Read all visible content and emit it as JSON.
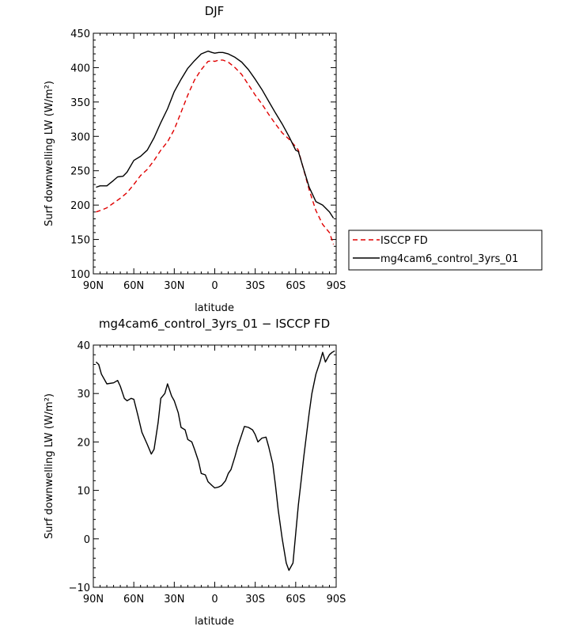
{
  "legend": {
    "position": "right-of-top-panel",
    "entries": [
      {
        "label": "ISCCP FD",
        "color": "#e00000",
        "dash": true
      },
      {
        "label": "mg4cam6_control_3yrs_01",
        "color": "#000000",
        "dash": false
      }
    ]
  },
  "chart_data": [
    {
      "type": "line",
      "title": "DJF",
      "xlabel": "latitude",
      "ylabel": "Surf downwelling LW (W/m²)",
      "xlim": [
        -90,
        90
      ],
      "ylim": [
        100,
        450
      ],
      "xticks": [
        {
          "v": -90,
          "label": "90N"
        },
        {
          "v": -60,
          "label": "60N"
        },
        {
          "v": -30,
          "label": "30N"
        },
        {
          "v": 0,
          "label": "0"
        },
        {
          "v": 30,
          "label": "30S"
        },
        {
          "v": 60,
          "label": "60S"
        },
        {
          "v": 90,
          "label": "90S"
        }
      ],
      "yticks": [
        100,
        150,
        200,
        250,
        300,
        350,
        400,
        450
      ],
      "grid": false,
      "series": [
        {
          "name": "ISCCP FD",
          "color": "#e00000",
          "dash": true,
          "x": [
            -88,
            -85,
            -80,
            -75,
            -70,
            -65,
            -60,
            -55,
            -50,
            -45,
            -40,
            -35,
            -30,
            -25,
            -20,
            -15,
            -10,
            -5,
            -2,
            0,
            3,
            6,
            10,
            15,
            20,
            25,
            30,
            35,
            40,
            45,
            50,
            55,
            60,
            62,
            65,
            70,
            75,
            80,
            85,
            88
          ],
          "values": [
            190,
            192,
            196,
            203,
            210,
            218,
            230,
            243,
            252,
            265,
            280,
            292,
            310,
            335,
            360,
            382,
            397,
            409,
            410,
            409,
            411,
            411,
            408,
            400,
            390,
            375,
            360,
            347,
            332,
            318,
            305,
            296,
            285,
            280,
            258,
            222,
            192,
            172,
            160,
            143
          ]
        },
        {
          "name": "mg4cam6_control_3yrs_01",
          "color": "#000000",
          "dash": false,
          "x": [
            -88,
            -85,
            -80,
            -75,
            -72,
            -68,
            -65,
            -60,
            -55,
            -50,
            -45,
            -40,
            -35,
            -30,
            -25,
            -20,
            -15,
            -10,
            -5,
            -2,
            0,
            3,
            6,
            10,
            15,
            20,
            25,
            30,
            35,
            40,
            45,
            50,
            55,
            60,
            62,
            65,
            70,
            75,
            80,
            85,
            88
          ],
          "values": [
            226,
            228,
            228,
            236,
            241,
            242,
            248,
            265,
            271,
            280,
            298,
            320,
            340,
            365,
            383,
            399,
            410,
            420,
            424,
            422,
            421,
            422,
            422,
            420,
            415,
            408,
            397,
            383,
            368,
            351,
            334,
            318,
            300,
            280,
            278,
            258,
            226,
            205,
            200,
            190,
            181
          ]
        }
      ]
    },
    {
      "type": "line",
      "title": "mg4cam6_control_3yrs_01 − ISCCP FD",
      "xlabel": "latitude",
      "ylabel": "Surf downwelling LW (W/m²)",
      "xlim": [
        -90,
        90
      ],
      "ylim": [
        -10,
        40
      ],
      "xticks": [
        {
          "v": -90,
          "label": "90N"
        },
        {
          "v": -60,
          "label": "60N"
        },
        {
          "v": -30,
          "label": "30N"
        },
        {
          "v": 0,
          "label": "0"
        },
        {
          "v": 30,
          "label": "30S"
        },
        {
          "v": 60,
          "label": "60S"
        },
        {
          "v": 90,
          "label": "90S"
        }
      ],
      "yticks": [
        -10,
        0,
        10,
        20,
        30,
        40
      ],
      "grid": false,
      "series": [
        {
          "color": "#000000",
          "dash": false,
          "x": [
            -88,
            -86,
            -84,
            -80,
            -75,
            -72,
            -70,
            -67,
            -65,
            -62,
            -60,
            -57,
            -54,
            -50,
            -47,
            -45,
            -42,
            -40,
            -37,
            -35,
            -32,
            -30,
            -27,
            -25,
            -22,
            -20,
            -17,
            -15,
            -12,
            -10,
            -7,
            -5,
            -2,
            0,
            3,
            5,
            8,
            10,
            12,
            15,
            17,
            20,
            22,
            25,
            28,
            30,
            32,
            35,
            38,
            40,
            43,
            45,
            47,
            50,
            53,
            55,
            58,
            60,
            62,
            64,
            66,
            68,
            70,
            72,
            75,
            78,
            80,
            82,
            85,
            87,
            89
          ],
          "values": [
            36.5,
            36,
            34,
            32,
            32.2,
            32.7,
            31.5,
            29,
            28.5,
            29,
            28.8,
            25.5,
            22,
            19.5,
            17.5,
            18.5,
            24,
            29,
            30,
            32,
            29.5,
            28.5,
            26,
            23,
            22.5,
            20.5,
            20,
            18.5,
            16,
            13.5,
            13.2,
            11.8,
            11,
            10.5,
            10.7,
            11,
            12,
            13.5,
            14.3,
            17,
            19,
            21.5,
            23.2,
            23,
            22.5,
            21.5,
            20,
            20.8,
            21,
            19,
            15.5,
            11,
            6,
            0,
            -5,
            -6.5,
            -5,
            1,
            7,
            12,
            17,
            21.5,
            26,
            30,
            34,
            36.5,
            38.5,
            36.5,
            38,
            38.5,
            38.8
          ]
        }
      ]
    }
  ]
}
